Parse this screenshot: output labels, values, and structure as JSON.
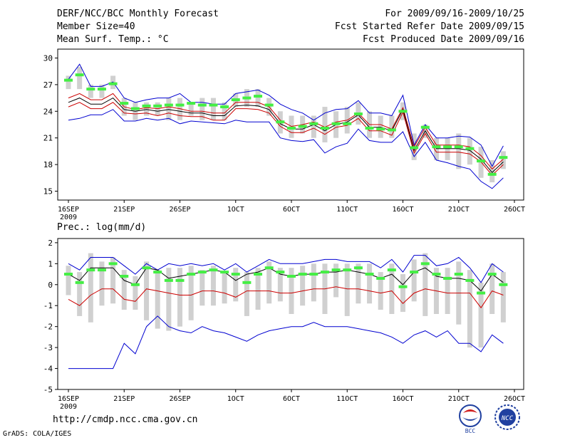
{
  "header": {
    "title": "DERF/NCC/BCC Monthly Forecast",
    "member_size": "Member Size=40",
    "variable": "Mean Surf. Temp.: °C",
    "period": "For 2009/09/16-2009/10/25",
    "started": "Fcst Started Refer Date 2009/09/15",
    "produced": "Fcst Produced Date 2009/09/16"
  },
  "footer": {
    "url": "http://cmdp.ncc.cma.gov.cn",
    "credit": "GrADS: COLA/IGES",
    "logo_left": "BCC",
    "logo_right": "NCC"
  },
  "colors": {
    "max_line": "#0000d0",
    "min_line": "#0000d0",
    "outer_red": "#cc0000",
    "mean_line": "#000000",
    "bar": "#d0d0d0",
    "green": "#44ee44"
  },
  "chart_data": [
    {
      "type": "line",
      "title": "Mean Surf. Temp.: °C",
      "x": [
        "16SEP",
        "17SEP",
        "18SEP",
        "19SEP",
        "20SEP",
        "21SEP",
        "22SEP",
        "23SEP",
        "24SEP",
        "25SEP",
        "26SEP",
        "27SEP",
        "28SEP",
        "29SEP",
        "30SEP",
        "1OCT",
        "2OCT",
        "3OCT",
        "4OCT",
        "5OCT",
        "6OCT",
        "7OCT",
        "8OCT",
        "9OCT",
        "10OCT",
        "11OCT",
        "12OCT",
        "13OCT",
        "14OCT",
        "15OCT",
        "16OCT",
        "17OCT",
        "18OCT",
        "19OCT",
        "20OCT",
        "21OCT",
        "22OCT",
        "23OCT",
        "24OCT",
        "25OCT"
      ],
      "tick_labels": [
        {
          "i": 0,
          "label": "16SEP"
        },
        {
          "i": 5,
          "label": "21SEP"
        },
        {
          "i": 10,
          "label": "26SEP"
        },
        {
          "i": 15,
          "label": "1OCT"
        },
        {
          "i": 20,
          "label": "6OCT"
        },
        {
          "i": 25,
          "label": "11OCT"
        },
        {
          "i": 30,
          "label": "16OCT"
        },
        {
          "i": 35,
          "label": "21OCT"
        },
        {
          "i": 40,
          "label": "26OCT"
        }
      ],
      "year_label": "2009",
      "ylim": [
        14,
        31
      ],
      "yticks": [
        15,
        18,
        21,
        24,
        27,
        30
      ],
      "series": [
        {
          "name": "max",
          "values": [
            27.6,
            29.3,
            26.8,
            26.8,
            27.3,
            25.5,
            25.0,
            25.3,
            25.5,
            25.5,
            26.0,
            25.0,
            25.0,
            24.8,
            24.8,
            26.0,
            26.2,
            26.4,
            25.8,
            24.8,
            24.2,
            23.8,
            23.0,
            23.8,
            24.2,
            24.3,
            25.2,
            23.8,
            23.8,
            23.5,
            25.8,
            20.2,
            22.5,
            21.0,
            21.0,
            21.2,
            21.1,
            20.2,
            17.8,
            20.1
          ]
        },
        {
          "name": "upper",
          "values": [
            25.5,
            26.0,
            25.3,
            25.3,
            26.0,
            24.5,
            24.2,
            24.4,
            24.3,
            24.5,
            24.3,
            24.0,
            24.0,
            23.8,
            23.8,
            25.0,
            25.0,
            25.0,
            24.5,
            23.0,
            22.3,
            22.5,
            22.8,
            22.2,
            22.8,
            23.0,
            23.8,
            22.5,
            22.5,
            22.0,
            24.4,
            20.0,
            22.2,
            20.2,
            20.2,
            20.2,
            20.0,
            19.0,
            17.5,
            18.6
          ]
        },
        {
          "name": "mean",
          "values": [
            25.0,
            25.5,
            24.8,
            24.8,
            25.5,
            24.2,
            24.0,
            24.2,
            24.0,
            24.2,
            24.0,
            23.8,
            23.8,
            23.5,
            23.5,
            24.6,
            24.7,
            24.6,
            24.2,
            22.6,
            22.0,
            22.0,
            22.5,
            21.8,
            22.5,
            22.8,
            23.6,
            22.2,
            22.2,
            21.8,
            24.2,
            19.6,
            21.8,
            19.8,
            19.8,
            19.8,
            19.6,
            18.6,
            17.1,
            18.3
          ]
        },
        {
          "name": "lower",
          "values": [
            24.5,
            25.0,
            24.3,
            24.3,
            25.0,
            23.8,
            23.7,
            23.8,
            23.5,
            23.8,
            23.5,
            23.4,
            23.4,
            23.0,
            23.0,
            24.3,
            24.3,
            24.2,
            23.8,
            22.3,
            21.6,
            21.6,
            22.1,
            21.4,
            22.2,
            22.4,
            23.2,
            21.8,
            21.8,
            21.3,
            23.9,
            19.3,
            21.5,
            19.4,
            19.4,
            19.4,
            19.2,
            18.3,
            16.8,
            18.0
          ]
        },
        {
          "name": "min",
          "values": [
            23.0,
            23.2,
            23.6,
            23.6,
            24.2,
            22.9,
            22.9,
            23.2,
            23.0,
            23.2,
            22.6,
            22.9,
            22.8,
            22.7,
            22.6,
            23.0,
            22.8,
            22.8,
            22.8,
            21.0,
            20.7,
            20.6,
            20.8,
            19.3,
            20.0,
            20.4,
            22.0,
            20.7,
            20.5,
            20.5,
            21.7,
            18.9,
            20.5,
            18.5,
            18.2,
            17.8,
            17.5,
            16.1,
            15.3,
            16.5
          ]
        },
        {
          "name": "observed",
          "values": [
            27.5,
            28.1,
            26.5,
            26.5,
            27.1,
            24.9,
            24.3,
            24.6,
            24.6,
            24.7,
            24.7,
            24.9,
            24.7,
            24.7,
            24.5,
            25.3,
            25.5,
            25.7,
            24.7,
            22.8,
            22.1,
            22.3,
            22.6,
            22.1,
            22.6,
            22.6,
            23.7,
            22.1,
            22.0,
            21.9,
            24.0,
            19.9,
            22.2,
            20.0,
            20.0,
            20.0,
            19.8,
            18.4,
            16.9,
            18.8
          ]
        },
        {
          "name": "bar_top",
          "values": [
            28.0,
            29.0,
            27.0,
            27.0,
            28.0,
            25.5,
            25.0,
            25.0,
            25.0,
            25.5,
            25.5,
            25.0,
            25.5,
            25.5,
            25.0,
            26.0,
            26.5,
            26.5,
            25.5,
            24.0,
            23.5,
            23.5,
            23.5,
            24.5,
            24.0,
            24.5,
            25.0,
            24.0,
            23.5,
            23.5,
            25.0,
            21.5,
            22.5,
            21.0,
            21.0,
            21.5,
            21.0,
            20.0,
            18.5,
            19.5
          ]
        },
        {
          "name": "bar_bottom",
          "values": [
            26.5,
            26.5,
            25.5,
            25.5,
            26.5,
            23.5,
            23.0,
            23.5,
            23.5,
            23.0,
            23.0,
            23.5,
            23.0,
            23.0,
            23.0,
            24.5,
            24.5,
            24.5,
            23.5,
            21.5,
            21.0,
            21.5,
            21.0,
            20.5,
            21.0,
            21.5,
            22.5,
            21.0,
            21.0,
            21.0,
            23.0,
            18.5,
            21.0,
            18.5,
            18.5,
            17.5,
            18.0,
            16.5,
            16.0,
            17.5
          ]
        }
      ]
    },
    {
      "type": "line",
      "title": "Prec.: log(mm/d)",
      "x": [
        "16SEP",
        "17SEP",
        "18SEP",
        "19SEP",
        "20SEP",
        "21SEP",
        "22SEP",
        "23SEP",
        "24SEP",
        "25SEP",
        "26SEP",
        "27SEP",
        "28SEP",
        "29SEP",
        "30SEP",
        "1OCT",
        "2OCT",
        "3OCT",
        "4OCT",
        "5OCT",
        "6OCT",
        "7OCT",
        "8OCT",
        "9OCT",
        "10OCT",
        "11OCT",
        "12OCT",
        "13OCT",
        "14OCT",
        "15OCT",
        "16OCT",
        "17OCT",
        "18OCT",
        "19OCT",
        "20OCT",
        "21OCT",
        "22OCT",
        "23OCT",
        "24OCT",
        "25OCT"
      ],
      "tick_labels": [
        {
          "i": 0,
          "label": "16SEP"
        },
        {
          "i": 5,
          "label": "21SEP"
        },
        {
          "i": 10,
          "label": "26SEP"
        },
        {
          "i": 15,
          "label": "1OCT"
        },
        {
          "i": 20,
          "label": "6OCT"
        },
        {
          "i": 25,
          "label": "11OCT"
        },
        {
          "i": 30,
          "label": "16OCT"
        },
        {
          "i": 35,
          "label": "21OCT"
        },
        {
          "i": 40,
          "label": "26OCT"
        }
      ],
      "year_label": "2009",
      "ylim": [
        -5,
        2.2
      ],
      "yticks": [
        -5,
        -4,
        -3,
        -2,
        -1,
        0,
        1,
        2
      ],
      "series": [
        {
          "name": "max",
          "values": [
            1.0,
            0.7,
            1.3,
            1.3,
            1.3,
            0.9,
            0.5,
            1.0,
            0.7,
            1.0,
            0.9,
            1.0,
            0.9,
            1.0,
            0.7,
            1.0,
            0.6,
            0.9,
            1.2,
            1.0,
            1.0,
            1.0,
            1.1,
            1.2,
            1.2,
            1.1,
            1.1,
            1.1,
            0.8,
            1.2,
            0.6,
            1.4,
            1.4,
            0.9,
            1.0,
            1.3,
            0.8,
            0.1,
            1.0,
            0.6
          ]
        },
        {
          "name": "mean",
          "values": [
            0.5,
            0.2,
            0.8,
            0.8,
            0.8,
            0.2,
            0.0,
            0.8,
            0.7,
            0.3,
            0.4,
            0.5,
            0.6,
            0.7,
            0.6,
            0.2,
            0.5,
            0.6,
            0.8,
            0.5,
            0.4,
            0.5,
            0.5,
            0.6,
            0.6,
            0.7,
            0.6,
            0.5,
            0.3,
            0.5,
            0.0,
            0.6,
            0.8,
            0.4,
            0.3,
            0.3,
            0.2,
            -0.3,
            0.5,
            0.1
          ]
        },
        {
          "name": "red",
          "values": [
            -0.7,
            -1.0,
            -0.5,
            -0.2,
            -0.2,
            -0.7,
            -0.8,
            -0.2,
            -0.3,
            -0.4,
            -0.5,
            -0.5,
            -0.3,
            -0.3,
            -0.4,
            -0.6,
            -0.3,
            -0.3,
            -0.3,
            -0.4,
            -0.4,
            -0.3,
            -0.2,
            -0.2,
            -0.1,
            -0.2,
            -0.2,
            -0.3,
            -0.4,
            -0.3,
            -0.9,
            -0.4,
            -0.2,
            -0.3,
            -0.4,
            -0.4,
            -0.4,
            -1.1,
            -0.3,
            -0.5
          ]
        },
        {
          "name": "min",
          "values": [
            -4.0,
            -4.0,
            -4.0,
            -4.0,
            -4.0,
            -2.8,
            -3.3,
            -2.0,
            -1.5,
            -2.0,
            -2.2,
            -2.3,
            -2.0,
            -2.2,
            -2.3,
            -2.5,
            -2.7,
            -2.4,
            -2.2,
            -2.1,
            -2.0,
            -2.0,
            -1.8,
            -2.0,
            -2.0,
            -2.0,
            -2.1,
            -2.2,
            -2.3,
            -2.5,
            -2.8,
            -2.4,
            -2.2,
            -2.5,
            -2.2,
            -2.8,
            -2.8,
            -3.2,
            -2.4,
            -2.8
          ]
        },
        {
          "name": "observed",
          "values": [
            0.5,
            0.1,
            0.7,
            0.7,
            1.0,
            0.4,
            0.0,
            0.8,
            0.6,
            0.2,
            0.2,
            0.5,
            0.6,
            0.7,
            0.6,
            0.5,
            0.1,
            0.5,
            0.8,
            0.6,
            0.4,
            0.5,
            0.5,
            0.6,
            0.7,
            0.7,
            0.8,
            0.5,
            0.3,
            0.7,
            -0.1,
            0.6,
            1.0,
            0.5,
            0.3,
            0.5,
            0.2,
            -0.4,
            0.5,
            0.0
          ]
        },
        {
          "name": "bar_top",
          "values": [
            0.9,
            0.6,
            1.5,
            1.1,
            1.3,
            0.7,
            0.4,
            1.1,
            0.7,
            0.8,
            0.8,
            0.9,
            0.7,
            0.9,
            0.6,
            0.8,
            0.6,
            0.8,
            1.1,
            0.8,
            0.8,
            0.9,
            1.0,
            1.0,
            1.0,
            1.0,
            1.0,
            1.0,
            0.6,
            1.0,
            0.5,
            1.2,
            1.5,
            0.8,
            0.8,
            1.1,
            0.7,
            0.1,
            1.0,
            0.6
          ]
        },
        {
          "name": "bar_bottom",
          "values": [
            -0.5,
            -1.5,
            -1.8,
            -1.0,
            -0.9,
            -1.2,
            -1.2,
            -1.7,
            -2.1,
            -2.2,
            -2.0,
            -1.7,
            -1.0,
            -1.0,
            -0.9,
            -0.8,
            -1.5,
            -1.2,
            -0.9,
            -0.8,
            -1.4,
            -1.0,
            -0.8,
            -1.4,
            -0.6,
            -1.5,
            -0.9,
            -0.9,
            -1.2,
            -1.4,
            -1.3,
            -0.8,
            -1.5,
            -1.4,
            -1.4,
            -1.9,
            -3.0,
            -3.0,
            -1.4,
            -1.8
          ]
        }
      ]
    }
  ]
}
